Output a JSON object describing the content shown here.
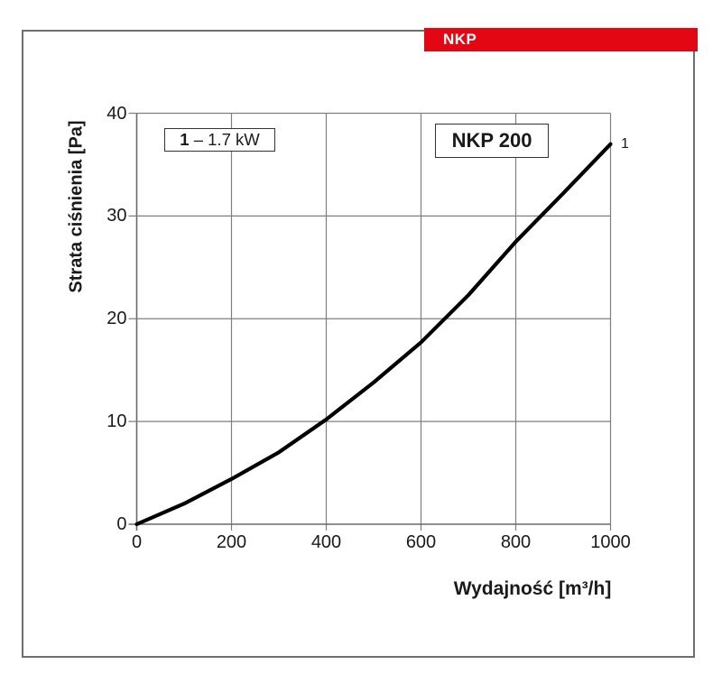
{
  "header": {
    "label": "NKP",
    "bar_color": "#e30613"
  },
  "chart_data": {
    "type": "line",
    "title": "NKP 200",
    "xlabel": "Wydajność [m³/h]",
    "ylabel": "Strata ciśnienia [Pa]",
    "xlim": [
      0,
      1000
    ],
    "ylim": [
      0,
      40
    ],
    "xticks": [
      0,
      200,
      400,
      600,
      800,
      1000
    ],
    "yticks": [
      0,
      10,
      20,
      30,
      40
    ],
    "grid": true,
    "grid_color": "#7f7f7f",
    "axis_color": "#696969",
    "legend": {
      "position": "top-left",
      "series_id": "1",
      "series_label": "– 1.7 kW"
    },
    "series": [
      {
        "id": "1",
        "name": "1 – 1.7 kW",
        "color": "#000000",
        "end_label": "1",
        "x": [
          0,
          100,
          200,
          300,
          400,
          500,
          600,
          700,
          800,
          900,
          1000
        ],
        "y": [
          0,
          2.0,
          4.4,
          7.0,
          10.2,
          13.8,
          17.7,
          22.3,
          27.5,
          32.2,
          37.0
        ]
      }
    ]
  }
}
